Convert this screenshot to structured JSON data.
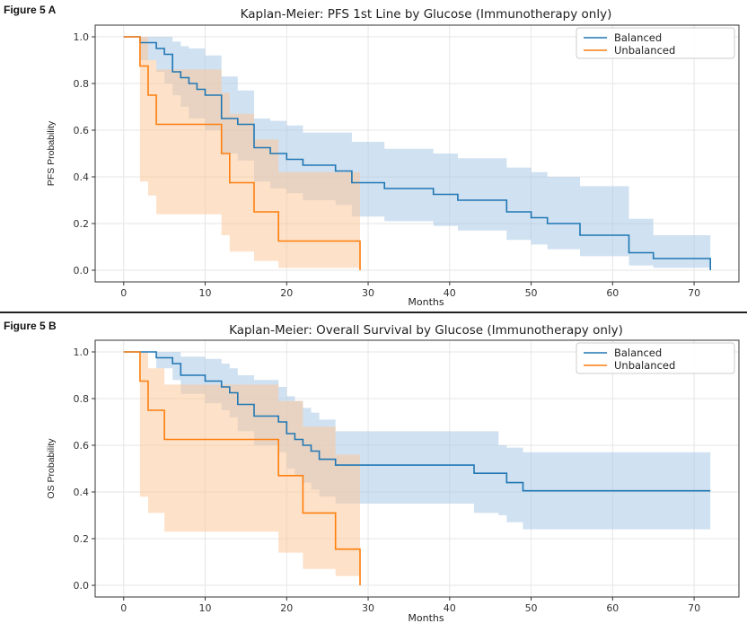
{
  "figures": [
    {
      "label": "Figure 5 A"
    },
    {
      "label": "Figure 5 B"
    }
  ],
  "chart_data": [
    {
      "type": "line",
      "title": "Kaplan-Meier: PFS 1st Line by Glucose (Immunotherapy only)",
      "xlabel": "Months",
      "ylabel": "PFS Probability",
      "xlim": [
        -3.5,
        75.5
      ],
      "ylim": [
        -0.05,
        1.05
      ],
      "xticks": [
        0,
        10,
        20,
        30,
        40,
        50,
        60,
        70
      ],
      "yticks": [
        0.0,
        0.2,
        0.4,
        0.6,
        0.8,
        1.0
      ],
      "xtick_labels": [
        "0",
        "10",
        "20",
        "30",
        "40",
        "50",
        "60",
        "70"
      ],
      "ytick_labels": [
        "0.0",
        "0.2",
        "0.4",
        "0.6",
        "0.8",
        "1.0"
      ],
      "grid": true,
      "legend_position": "top-right",
      "series": [
        {
          "name": "Balanced",
          "color": "#1f77b4",
          "ci_color": "#a9c9e6",
          "x": [
            0,
            2,
            4,
            5,
            6,
            7,
            8,
            9,
            10,
            12,
            14,
            16,
            18,
            20,
            22,
            26,
            28,
            32,
            38,
            41,
            47,
            50,
            52,
            56,
            62,
            65,
            72
          ],
          "y": [
            1.0,
            0.975,
            0.95,
            0.925,
            0.85,
            0.825,
            0.8,
            0.775,
            0.75,
            0.65,
            0.625,
            0.525,
            0.5,
            0.475,
            0.45,
            0.425,
            0.375,
            0.35,
            0.325,
            0.3,
            0.25,
            0.225,
            0.2,
            0.15,
            0.075,
            0.05,
            0.0
          ],
          "ci_x": [
            0,
            2,
            4,
            5,
            6,
            7,
            8,
            10,
            12,
            14,
            16,
            18,
            20,
            22,
            26,
            28,
            32,
            38,
            41,
            47,
            50,
            52,
            56,
            62,
            65,
            72
          ],
          "ci_lower": [
            1.0,
            0.9,
            0.85,
            0.8,
            0.75,
            0.7,
            0.65,
            0.6,
            0.5,
            0.47,
            0.38,
            0.35,
            0.33,
            0.3,
            0.28,
            0.23,
            0.21,
            0.19,
            0.17,
            0.13,
            0.11,
            0.09,
            0.06,
            0.02,
            0.01,
            0.0
          ],
          "ci_upper": [
            1.0,
            1.0,
            1.0,
            1.0,
            0.98,
            0.96,
            0.95,
            0.92,
            0.83,
            0.77,
            0.65,
            0.64,
            0.62,
            0.59,
            0.59,
            0.55,
            0.52,
            0.5,
            0.48,
            0.44,
            0.42,
            0.4,
            0.36,
            0.22,
            0.15,
            0.15
          ]
        },
        {
          "name": "Unbalanced",
          "color": "#ff7f0e",
          "ci_color": "#fbc99a",
          "x": [
            0,
            2,
            3,
            4,
            12,
            13,
            16,
            19,
            29
          ],
          "y": [
            1.0,
            0.875,
            0.75,
            0.625,
            0.5,
            0.375,
            0.25,
            0.125,
            0.0
          ],
          "ci_x": [
            0,
            2,
            3,
            4,
            12,
            13,
            16,
            19,
            29
          ],
          "ci_lower": [
            1.0,
            0.38,
            0.32,
            0.24,
            0.15,
            0.08,
            0.04,
            0.01,
            0.0
          ],
          "ci_upper": [
            1.0,
            1.0,
            0.9,
            0.86,
            0.76,
            0.67,
            0.56,
            0.42,
            0.42
          ]
        }
      ]
    },
    {
      "type": "line",
      "title": "Kaplan-Meier: Overall Survival by Glucose (Immunotherapy only)",
      "xlabel": "Months",
      "ylabel": "OS Probability",
      "xlim": [
        -3.5,
        75.5
      ],
      "ylim": [
        -0.05,
        1.05
      ],
      "xticks": [
        0,
        10,
        20,
        30,
        40,
        50,
        60,
        70
      ],
      "yticks": [
        0.0,
        0.2,
        0.4,
        0.6,
        0.8,
        1.0
      ],
      "xtick_labels": [
        "0",
        "10",
        "20",
        "30",
        "40",
        "50",
        "60",
        "70"
      ],
      "ytick_labels": [
        "0.0",
        "0.2",
        "0.4",
        "0.6",
        "0.8",
        "1.0"
      ],
      "grid": true,
      "legend_position": "top-right",
      "series": [
        {
          "name": "Balanced",
          "color": "#1f77b4",
          "ci_color": "#a9c9e6",
          "x": [
            0,
            4,
            6,
            7,
            10,
            12,
            13,
            14,
            16,
            19,
            20,
            21,
            22,
            23,
            24,
            26,
            43,
            46,
            47,
            49,
            72
          ],
          "y": [
            1.0,
            0.975,
            0.95,
            0.9,
            0.875,
            0.85,
            0.825,
            0.775,
            0.725,
            0.7,
            0.65,
            0.625,
            0.6,
            0.575,
            0.54,
            0.515,
            0.48,
            0.48,
            0.44,
            0.405,
            0.405
          ],
          "ci_x": [
            0,
            4,
            6,
            7,
            10,
            12,
            13,
            14,
            16,
            19,
            20,
            21,
            22,
            23,
            24,
            26,
            43,
            46,
            47,
            49,
            72
          ],
          "ci_lower": [
            1.0,
            0.93,
            0.88,
            0.82,
            0.78,
            0.75,
            0.72,
            0.66,
            0.6,
            0.57,
            0.5,
            0.47,
            0.44,
            0.41,
            0.38,
            0.35,
            0.31,
            0.3,
            0.27,
            0.24,
            0.24
          ],
          "ci_upper": [
            1.0,
            1.0,
            1.0,
            0.98,
            0.97,
            0.95,
            0.93,
            0.9,
            0.88,
            0.85,
            0.81,
            0.79,
            0.76,
            0.74,
            0.71,
            0.66,
            0.66,
            0.6,
            0.59,
            0.57,
            0.57
          ]
        },
        {
          "name": "Unbalanced",
          "color": "#ff7f0e",
          "ci_color": "#fbc99a",
          "x": [
            0,
            2,
            3,
            5,
            19,
            22,
            26,
            29
          ],
          "y": [
            1.0,
            0.875,
            0.75,
            0.625,
            0.47,
            0.31,
            0.155,
            0.0
          ],
          "ci_x": [
            0,
            2,
            3,
            5,
            19,
            22,
            26,
            29
          ],
          "ci_lower": [
            1.0,
            0.38,
            0.31,
            0.23,
            0.14,
            0.07,
            0.04,
            0.0
          ],
          "ci_upper": [
            1.0,
            1.0,
            0.93,
            0.86,
            0.79,
            0.68,
            0.56,
            0.56
          ]
        }
      ]
    }
  ]
}
